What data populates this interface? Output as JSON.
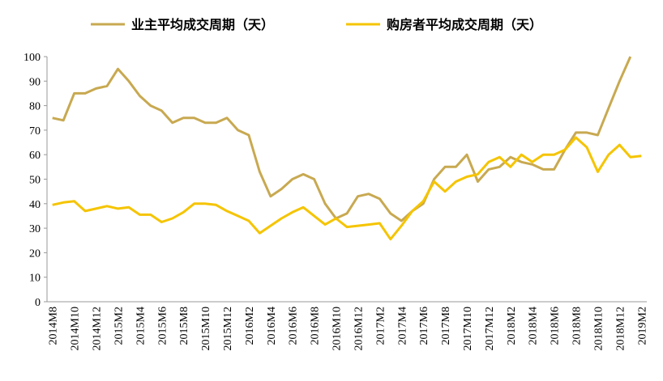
{
  "chart_data": {
    "type": "line",
    "categories": [
      "2014M8",
      null,
      "2014M10",
      null,
      "2014M12",
      null,
      "2015M2",
      null,
      "2015M4",
      null,
      "2015M6",
      null,
      "2015M8",
      null,
      "2015M10",
      null,
      "2015M12",
      null,
      "2016M2",
      null,
      "2016M4",
      null,
      "2016M6",
      null,
      "2016M8",
      null,
      "2016M10",
      null,
      "2016M12",
      null,
      "2017M2",
      null,
      "2017M4",
      null,
      "2017M6",
      null,
      "2017M8",
      null,
      "2017M10",
      null,
      "2017M12",
      null,
      "2018M2",
      null,
      "2018M4",
      null,
      "2018M6",
      null,
      "2018M8",
      null,
      "2018M10",
      null,
      "2018M12",
      null,
      "2019M2"
    ],
    "series": [
      {
        "name": "业主平均成交周期（天）",
        "color": "#C8A951",
        "values": [
          75,
          74,
          85,
          85,
          87,
          88,
          95,
          90,
          84,
          80,
          78,
          73,
          75,
          75,
          73,
          73,
          75,
          70,
          68,
          53,
          43,
          46,
          50,
          52,
          50,
          40,
          34,
          36,
          43,
          44,
          42,
          36,
          33,
          37,
          40,
          50,
          55,
          55,
          60,
          49,
          54,
          55,
          59,
          57,
          56,
          54,
          54,
          62,
          69,
          69,
          68,
          79,
          90,
          100,
          null
        ]
      },
      {
        "name": "购房者平均成交周期（天）",
        "color": "#F5C400",
        "values": [
          39.5,
          40.5,
          41,
          37,
          38,
          39,
          38,
          38.5,
          35.5,
          35.5,
          32.5,
          34,
          36.5,
          40,
          40,
          39.5,
          37,
          35,
          33,
          28,
          31,
          34,
          36.5,
          38.5,
          35,
          31.5,
          34,
          30.5,
          31,
          31.5,
          32,
          25.5,
          31,
          37,
          41,
          49,
          45,
          49,
          51,
          52,
          57,
          59,
          55,
          60,
          57,
          60,
          60,
          62,
          67,
          63,
          53,
          60,
          64,
          59,
          59.5
        ]
      }
    ],
    "ylim": [
      0,
      100
    ],
    "yticks": [
      0,
      10,
      20,
      30,
      40,
      50,
      60,
      70,
      80,
      90,
      100
    ],
    "grid": false
  }
}
